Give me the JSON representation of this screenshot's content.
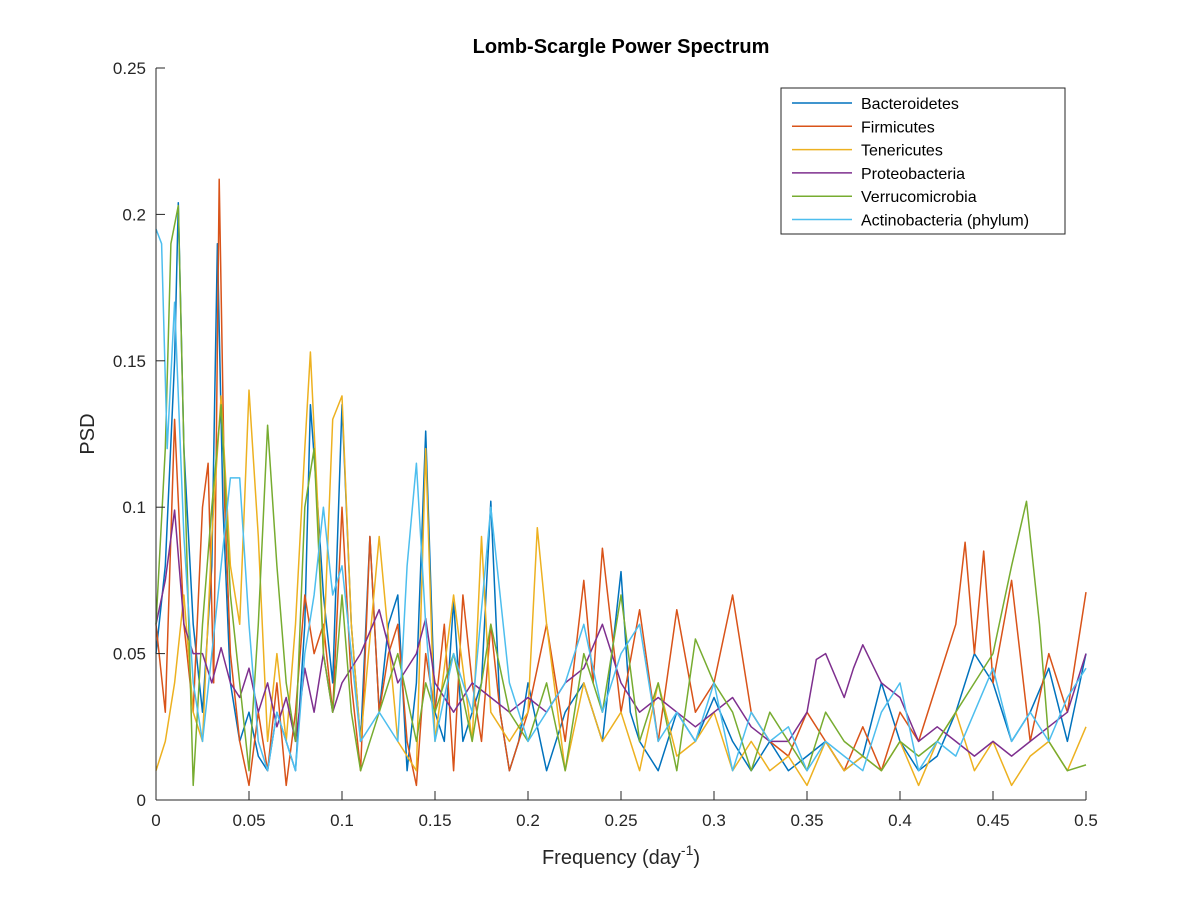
{
  "chart_data": {
    "type": "line",
    "title": "Lomb-Scargle Power Spectrum",
    "xlabel": "Frequency (day",
    "xlabel_sup": "-1",
    "xlabel_end": ")",
    "ylabel": "PSD",
    "xlim": [
      0,
      0.5
    ],
    "ylim": [
      0,
      0.25
    ],
    "xticks": [
      0,
      0.05,
      0.1,
      0.15,
      0.2,
      0.25,
      0.3,
      0.35,
      0.4,
      0.45,
      0.5
    ],
    "xtick_labels": [
      "0",
      "0.05",
      "0.1",
      "0.15",
      "0.2",
      "0.25",
      "0.3",
      "0.35",
      "0.4",
      "0.45",
      "0.5"
    ],
    "yticks": [
      0,
      0.05,
      0.1,
      0.15,
      0.2,
      0.25
    ],
    "ytick_labels": [
      "0",
      "0.05",
      "0.1",
      "0.15",
      "0.2",
      "0.25"
    ],
    "grid": false,
    "legend_position": "top-right",
    "series": [
      {
        "name": "Bacteroidetes",
        "color": "#0072BD",
        "x": [
          0,
          0.005,
          0.01,
          0.012,
          0.015,
          0.02,
          0.025,
          0.03,
          0.033,
          0.036,
          0.04,
          0.045,
          0.05,
          0.055,
          0.06,
          0.065,
          0.07,
          0.075,
          0.08,
          0.083,
          0.087,
          0.09,
          0.095,
          0.1,
          0.105,
          0.11,
          0.115,
          0.12,
          0.125,
          0.13,
          0.135,
          0.14,
          0.145,
          0.15,
          0.155,
          0.16,
          0.165,
          0.17,
          0.175,
          0.18,
          0.185,
          0.19,
          0.195,
          0.2,
          0.21,
          0.22,
          0.23,
          0.24,
          0.25,
          0.255,
          0.26,
          0.27,
          0.28,
          0.29,
          0.3,
          0.31,
          0.32,
          0.33,
          0.34,
          0.35,
          0.36,
          0.37,
          0.38,
          0.39,
          0.4,
          0.41,
          0.42,
          0.43,
          0.44,
          0.45,
          0.46,
          0.47,
          0.48,
          0.49,
          0.5
        ],
        "y": [
          0.05,
          0.08,
          0.15,
          0.204,
          0.12,
          0.06,
          0.03,
          0.08,
          0.19,
          0.1,
          0.04,
          0.02,
          0.03,
          0.015,
          0.01,
          0.03,
          0.02,
          0.01,
          0.06,
          0.135,
          0.1,
          0.07,
          0.04,
          0.135,
          0.06,
          0.02,
          0.09,
          0.03,
          0.06,
          0.07,
          0.01,
          0.04,
          0.126,
          0.03,
          0.02,
          0.068,
          0.02,
          0.03,
          0.04,
          0.102,
          0.03,
          0.01,
          0.02,
          0.04,
          0.01,
          0.03,
          0.04,
          0.02,
          0.078,
          0.03,
          0.02,
          0.01,
          0.03,
          0.02,
          0.035,
          0.02,
          0.01,
          0.02,
          0.01,
          0.015,
          0.02,
          0.01,
          0.015,
          0.04,
          0.02,
          0.01,
          0.015,
          0.03,
          0.05,
          0.04,
          0.02,
          0.03,
          0.045,
          0.02,
          0.05
        ]
      },
      {
        "name": "Firmicutes",
        "color": "#D95319",
        "x": [
          0,
          0.005,
          0.01,
          0.015,
          0.02,
          0.025,
          0.028,
          0.031,
          0.034,
          0.037,
          0.04,
          0.045,
          0.05,
          0.055,
          0.06,
          0.065,
          0.07,
          0.075,
          0.08,
          0.085,
          0.09,
          0.095,
          0.1,
          0.105,
          0.11,
          0.115,
          0.12,
          0.125,
          0.13,
          0.135,
          0.14,
          0.145,
          0.15,
          0.155,
          0.16,
          0.165,
          0.17,
          0.175,
          0.18,
          0.185,
          0.19,
          0.2,
          0.21,
          0.22,
          0.23,
          0.235,
          0.24,
          0.25,
          0.26,
          0.27,
          0.28,
          0.29,
          0.3,
          0.31,
          0.32,
          0.33,
          0.34,
          0.35,
          0.36,
          0.37,
          0.38,
          0.39,
          0.4,
          0.41,
          0.42,
          0.43,
          0.435,
          0.44,
          0.445,
          0.45,
          0.46,
          0.47,
          0.48,
          0.49,
          0.5
        ],
        "y": [
          0.06,
          0.03,
          0.13,
          0.06,
          0.03,
          0.1,
          0.115,
          0.04,
          0.212,
          0.1,
          0.05,
          0.02,
          0.005,
          0.03,
          0.01,
          0.04,
          0.005,
          0.03,
          0.07,
          0.05,
          0.06,
          0.03,
          0.1,
          0.04,
          0.01,
          0.09,
          0.03,
          0.05,
          0.06,
          0.02,
          0.005,
          0.05,
          0.03,
          0.06,
          0.01,
          0.07,
          0.04,
          0.02,
          0.06,
          0.03,
          0.01,
          0.03,
          0.06,
          0.02,
          0.075,
          0.04,
          0.086,
          0.03,
          0.065,
          0.02,
          0.065,
          0.03,
          0.04,
          0.07,
          0.03,
          0.02,
          0.015,
          0.03,
          0.02,
          0.01,
          0.025,
          0.01,
          0.03,
          0.02,
          0.04,
          0.06,
          0.088,
          0.05,
          0.085,
          0.04,
          0.075,
          0.02,
          0.05,
          0.03,
          0.071
        ]
      },
      {
        "name": "Tenericutes",
        "color": "#EDB120",
        "x": [
          0,
          0.005,
          0.01,
          0.015,
          0.02,
          0.025,
          0.03,
          0.035,
          0.04,
          0.045,
          0.05,
          0.055,
          0.06,
          0.065,
          0.07,
          0.075,
          0.08,
          0.083,
          0.087,
          0.09,
          0.095,
          0.1,
          0.105,
          0.11,
          0.12,
          0.13,
          0.14,
          0.145,
          0.15,
          0.16,
          0.17,
          0.175,
          0.18,
          0.19,
          0.2,
          0.205,
          0.21,
          0.22,
          0.23,
          0.24,
          0.25,
          0.26,
          0.27,
          0.28,
          0.29,
          0.3,
          0.31,
          0.32,
          0.33,
          0.34,
          0.35,
          0.36,
          0.37,
          0.38,
          0.39,
          0.4,
          0.41,
          0.42,
          0.43,
          0.44,
          0.45,
          0.46,
          0.47,
          0.48,
          0.49,
          0.5
        ],
        "y": [
          0.01,
          0.02,
          0.04,
          0.07,
          0.03,
          0.02,
          0.09,
          0.138,
          0.08,
          0.06,
          0.14,
          0.09,
          0.02,
          0.05,
          0.02,
          0.06,
          0.12,
          0.153,
          0.1,
          0.05,
          0.13,
          0.138,
          0.06,
          0.02,
          0.09,
          0.02,
          0.01,
          0.12,
          0.02,
          0.07,
          0.02,
          0.09,
          0.03,
          0.02,
          0.03,
          0.093,
          0.06,
          0.01,
          0.04,
          0.02,
          0.03,
          0.01,
          0.04,
          0.015,
          0.02,
          0.03,
          0.01,
          0.02,
          0.01,
          0.015,
          0.005,
          0.02,
          0.01,
          0.015,
          0.01,
          0.02,
          0.005,
          0.02,
          0.03,
          0.01,
          0.02,
          0.005,
          0.015,
          0.02,
          0.01,
          0.025
        ]
      },
      {
        "name": "Proteobacteria",
        "color": "#7E2F8E",
        "x": [
          0,
          0.005,
          0.01,
          0.015,
          0.02,
          0.025,
          0.03,
          0.035,
          0.04,
          0.045,
          0.05,
          0.055,
          0.06,
          0.065,
          0.07,
          0.075,
          0.08,
          0.085,
          0.09,
          0.095,
          0.1,
          0.11,
          0.12,
          0.13,
          0.14,
          0.145,
          0.15,
          0.16,
          0.17,
          0.18,
          0.19,
          0.2,
          0.21,
          0.22,
          0.23,
          0.24,
          0.25,
          0.26,
          0.27,
          0.28,
          0.29,
          0.3,
          0.31,
          0.32,
          0.33,
          0.34,
          0.35,
          0.355,
          0.36,
          0.37,
          0.375,
          0.38,
          0.39,
          0.4,
          0.41,
          0.42,
          0.43,
          0.44,
          0.45,
          0.46,
          0.47,
          0.48,
          0.49,
          0.5
        ],
        "y": [
          0.06,
          0.075,
          0.099,
          0.06,
          0.05,
          0.05,
          0.04,
          0.052,
          0.04,
          0.035,
          0.045,
          0.03,
          0.04,
          0.025,
          0.035,
          0.02,
          0.045,
          0.03,
          0.05,
          0.03,
          0.04,
          0.05,
          0.065,
          0.04,
          0.05,
          0.062,
          0.04,
          0.03,
          0.04,
          0.035,
          0.03,
          0.035,
          0.03,
          0.04,
          0.045,
          0.06,
          0.04,
          0.03,
          0.035,
          0.03,
          0.025,
          0.03,
          0.035,
          0.025,
          0.02,
          0.02,
          0.03,
          0.048,
          0.05,
          0.035,
          0.045,
          0.053,
          0.04,
          0.035,
          0.02,
          0.025,
          0.02,
          0.015,
          0.02,
          0.015,
          0.02,
          0.025,
          0.03,
          0.05
        ]
      },
      {
        "name": "Verrucomicrobia",
        "color": "#77AC30",
        "x": [
          0,
          0.005,
          0.008,
          0.012,
          0.015,
          0.02,
          0.025,
          0.03,
          0.035,
          0.04,
          0.045,
          0.05,
          0.055,
          0.06,
          0.065,
          0.07,
          0.075,
          0.08,
          0.085,
          0.09,
          0.095,
          0.1,
          0.105,
          0.11,
          0.12,
          0.13,
          0.14,
          0.145,
          0.15,
          0.16,
          0.17,
          0.18,
          0.19,
          0.2,
          0.21,
          0.22,
          0.23,
          0.24,
          0.25,
          0.26,
          0.27,
          0.28,
          0.29,
          0.3,
          0.31,
          0.32,
          0.33,
          0.34,
          0.35,
          0.36,
          0.37,
          0.38,
          0.39,
          0.4,
          0.41,
          0.42,
          0.43,
          0.44,
          0.45,
          0.46,
          0.468,
          0.475,
          0.48,
          0.49,
          0.5
        ],
        "y": [
          0.06,
          0.12,
          0.19,
          0.203,
          0.12,
          0.005,
          0.06,
          0.1,
          0.135,
          0.07,
          0.04,
          0.01,
          0.06,
          0.128,
          0.08,
          0.04,
          0.02,
          0.1,
          0.12,
          0.05,
          0.03,
          0.07,
          0.03,
          0.01,
          0.03,
          0.05,
          0.02,
          0.04,
          0.03,
          0.05,
          0.02,
          0.06,
          0.03,
          0.02,
          0.04,
          0.01,
          0.05,
          0.03,
          0.07,
          0.02,
          0.04,
          0.01,
          0.055,
          0.04,
          0.03,
          0.01,
          0.03,
          0.02,
          0.01,
          0.03,
          0.02,
          0.015,
          0.01,
          0.02,
          0.015,
          0.02,
          0.03,
          0.04,
          0.05,
          0.08,
          0.102,
          0.06,
          0.02,
          0.01,
          0.012
        ]
      },
      {
        "name": "Actinobacteria (phylum)",
        "color": "#4DBEEE",
        "x": [
          0,
          0.003,
          0.006,
          0.01,
          0.015,
          0.02,
          0.025,
          0.03,
          0.035,
          0.04,
          0.045,
          0.05,
          0.055,
          0.06,
          0.065,
          0.07,
          0.075,
          0.08,
          0.085,
          0.09,
          0.095,
          0.1,
          0.11,
          0.12,
          0.13,
          0.135,
          0.14,
          0.145,
          0.15,
          0.16,
          0.17,
          0.18,
          0.19,
          0.2,
          0.21,
          0.22,
          0.23,
          0.24,
          0.25,
          0.26,
          0.27,
          0.28,
          0.29,
          0.3,
          0.31,
          0.32,
          0.33,
          0.34,
          0.35,
          0.36,
          0.37,
          0.38,
          0.39,
          0.4,
          0.41,
          0.42,
          0.43,
          0.44,
          0.45,
          0.46,
          0.47,
          0.48,
          0.49,
          0.5
        ],
        "y": [
          0.195,
          0.19,
          0.12,
          0.17,
          0.09,
          0.04,
          0.02,
          0.05,
          0.08,
          0.11,
          0.11,
          0.06,
          0.02,
          0.01,
          0.03,
          0.02,
          0.01,
          0.05,
          0.07,
          0.1,
          0.07,
          0.08,
          0.02,
          0.03,
          0.02,
          0.08,
          0.115,
          0.06,
          0.02,
          0.05,
          0.03,
          0.1,
          0.04,
          0.02,
          0.03,
          0.04,
          0.06,
          0.03,
          0.05,
          0.06,
          0.02,
          0.03,
          0.02,
          0.04,
          0.01,
          0.03,
          0.02,
          0.025,
          0.01,
          0.02,
          0.015,
          0.01,
          0.03,
          0.04,
          0.01,
          0.02,
          0.015,
          0.03,
          0.045,
          0.02,
          0.03,
          0.02,
          0.035,
          0.045
        ]
      }
    ]
  }
}
